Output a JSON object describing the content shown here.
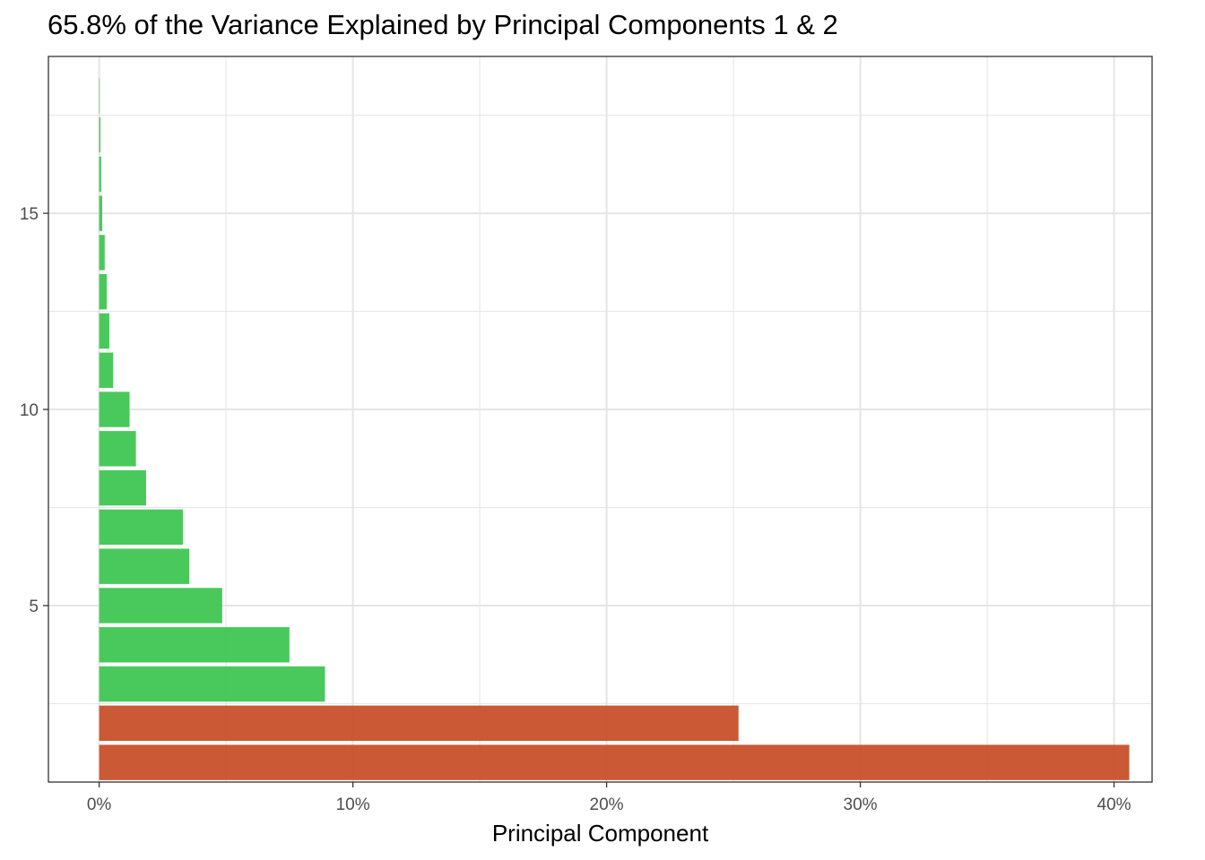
{
  "chart_data": {
    "type": "bar",
    "orientation": "horizontal",
    "title": "65.8% of the Variance Explained by Principal Components 1 & 2",
    "xlabel": "Principal Component",
    "ylabel": "",
    "categories": [
      1,
      2,
      3,
      4,
      5,
      6,
      7,
      8,
      9,
      10,
      11,
      12,
      13,
      14,
      15,
      16,
      17,
      18
    ],
    "values": [
      40.6,
      25.2,
      8.9,
      7.5,
      4.85,
      3.55,
      3.3,
      1.85,
      1.45,
      1.2,
      0.55,
      0.4,
      0.3,
      0.22,
      0.12,
      0.08,
      0.05,
      0.02
    ],
    "highlight_count": 2,
    "colors": {
      "highlight": "#c8502a",
      "other": "#3fc653",
      "grid": "#e5e5e5",
      "panel_border": "#333333"
    },
    "xlim": [
      -2,
      41.5
    ],
    "ylim": [
      0.5,
      19
    ],
    "x_ticks": [
      0,
      10,
      20,
      30,
      40
    ],
    "x_tick_labels": [
      "0%",
      "10%",
      "20%",
      "30%",
      "40%"
    ],
    "y_ticks": [
      5,
      10,
      15
    ],
    "y_tick_labels": [
      "5",
      "10",
      "15"
    ],
    "grid": true
  }
}
